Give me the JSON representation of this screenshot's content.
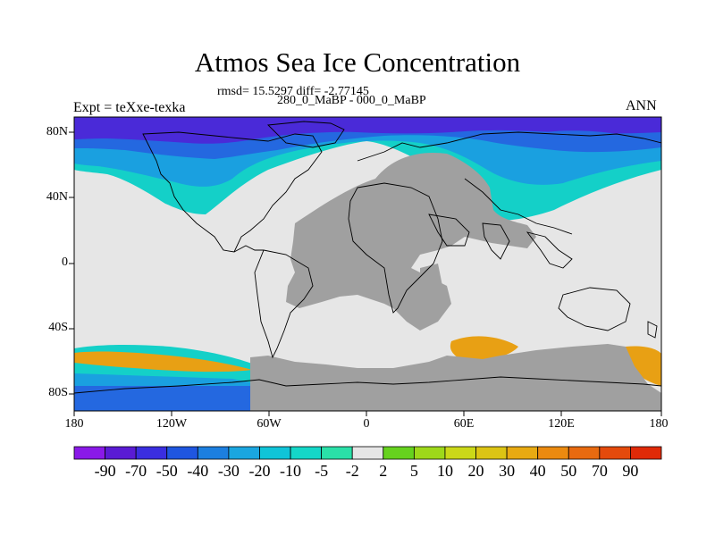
{
  "title": "Atmos Sea Ice Concentration",
  "stats": "rmsd= 15.5297 diff= -2.77145",
  "period": "280_0_MaBP - 000_0_MaBP",
  "experiment": "Expt = teXxe-texka",
  "season": "ANN",
  "lat_labels": [
    "80N",
    "40N",
    "0",
    "40S",
    "80S"
  ],
  "lon_labels": [
    "180",
    "120W",
    "60W",
    "0",
    "60E",
    "120E",
    "180"
  ],
  "colorbar": {
    "labels": [
      "-90",
      "-70",
      "-50",
      "-40",
      "-30",
      "-20",
      "-10",
      "-5",
      "-2",
      "2",
      "5",
      "10",
      "20",
      "30",
      "40",
      "50",
      "70",
      "90"
    ],
    "colors": [
      "#8a19e8",
      "#5a1bd4",
      "#3a2ee0",
      "#1f56e0",
      "#1c7fe0",
      "#1aa6e0",
      "#10c4d8",
      "#14d7c8",
      "#2ae0a8",
      "#e6e6e6",
      "#66d21e",
      "#9ed81a",
      "#cbd818",
      "#dcc414",
      "#e8aa12",
      "#eb8a10",
      "#e86a10",
      "#e44a0c",
      "#e02a08"
    ]
  },
  "map_colors": {
    "ocean_diff": "#e6e6e6",
    "land_gray": "#a0a0a0",
    "arctic_deep": "#4a2ad8",
    "arctic_blue": "#2468e0",
    "arctic_mid": "#1aa0e0",
    "arctic_cyan": "#14d0c8",
    "south_orange": "#e8a014",
    "south_yellow": "#d8d818"
  }
}
